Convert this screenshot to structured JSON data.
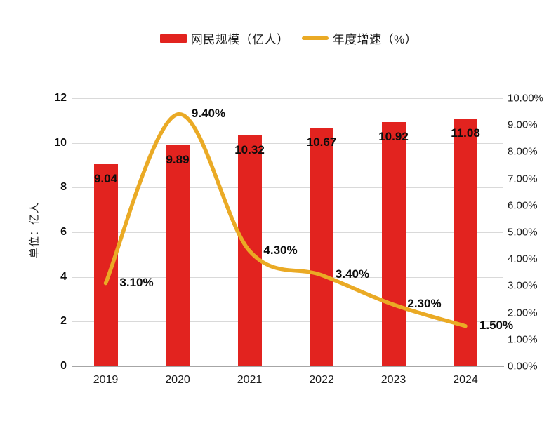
{
  "page": {
    "background": "#ffffff"
  },
  "legend": {
    "items": [
      {
        "label": "网民规模（亿人）",
        "swatch": "bar",
        "color": "#e2231f"
      },
      {
        "label": "年度增速（%）",
        "swatch": "line",
        "color": "#eaaa25"
      }
    ]
  },
  "axes": {
    "left_title": "单位：亿人",
    "left_ticks": [
      "0",
      "2",
      "4",
      "6",
      "8",
      "10",
      "12"
    ],
    "right_ticks": [
      "0.00%",
      "1.00%",
      "2.00%",
      "3.00%",
      "4.00%",
      "5.00%",
      "6.00%",
      "7.00%",
      "8.00%",
      "9.00%",
      "10.00%"
    ],
    "x_ticks": [
      "2019",
      "2020",
      "2021",
      "2022",
      "2023",
      "2024"
    ]
  },
  "colors": {
    "bar": "#e2231f",
    "line": "#eaaa25",
    "gridline": "#d9d9d9",
    "baseline": "#a6a6a6",
    "text": "#0d0d0d"
  },
  "chart_data": {
    "type": "bar",
    "subtype": "bar+line-combo",
    "categories": [
      "2019",
      "2020",
      "2021",
      "2022",
      "2023",
      "2024"
    ],
    "series": [
      {
        "name": "网民规模（亿人）",
        "type": "bar",
        "axis": "left",
        "color": "#e2231f",
        "values": [
          9.04,
          9.89,
          10.32,
          10.67,
          10.92,
          11.08
        ],
        "labels": [
          "9.04",
          "9.89",
          "10.32",
          "10.67",
          "10.92",
          "11.08"
        ]
      },
      {
        "name": "年度增速（%）",
        "type": "line",
        "axis": "right",
        "color": "#eaaa25",
        "values": [
          3.1,
          9.4,
          4.3,
          3.4,
          2.3,
          1.5
        ],
        "labels": [
          "3.10%",
          "9.40%",
          "4.30%",
          "3.40%",
          "2.30%",
          "1.50%"
        ]
      }
    ],
    "left_axis": {
      "title": "单位：亿人",
      "min": 0,
      "max": 12,
      "step": 2
    },
    "right_axis": {
      "min": 0,
      "max": 10,
      "step": 1,
      "format": "0.00%"
    },
    "grid": true,
    "legend_position": "top-center",
    "title": ""
  }
}
